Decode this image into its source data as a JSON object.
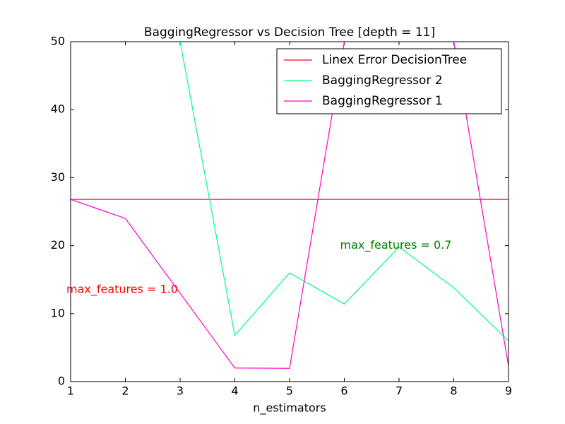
{
  "chart_data": {
    "type": "line",
    "title": "BaggingRegressor vs Decision Tree [depth = 11]",
    "x_label": "n_estimators",
    "x": [
      1,
      2,
      3,
      4,
      5,
      6,
      7,
      8,
      9
    ],
    "series": [
      {
        "name": "Linex Error DecisionTree",
        "color": "#ff0033",
        "values": [
          26.8,
          26.8,
          26.8,
          26.8,
          26.8,
          26.8,
          26.8,
          26.8,
          26.8
        ]
      },
      {
        "name": "BaggingRegressor 2",
        "color": "#00ff80",
        "values": [
          null,
          null,
          50,
          6.8,
          16,
          11.4,
          19.8,
          13.8,
          6
        ]
      },
      {
        "name": "BaggingRegressor 1",
        "color": "#ff00cc",
        "values": [
          26.8,
          24,
          13,
          2,
          1.95,
          50,
          null,
          50,
          2.3
        ]
      }
    ],
    "annotations": [
      {
        "text": "max_features = 1.0",
        "x": 1,
        "y": 13.5,
        "color": "#ff0000"
      },
      {
        "text": "max_features = 0.7",
        "x": 6,
        "y": 20,
        "color": "#008000"
      }
    ],
    "xlim": [
      1,
      9
    ],
    "ylim": [
      0,
      50
    ],
    "xticks": [
      1,
      2,
      3,
      4,
      5,
      6,
      7,
      8,
      9
    ],
    "yticks": [
      0,
      10,
      20,
      30,
      40,
      50
    ],
    "grid": false,
    "legend": "upper right"
  }
}
